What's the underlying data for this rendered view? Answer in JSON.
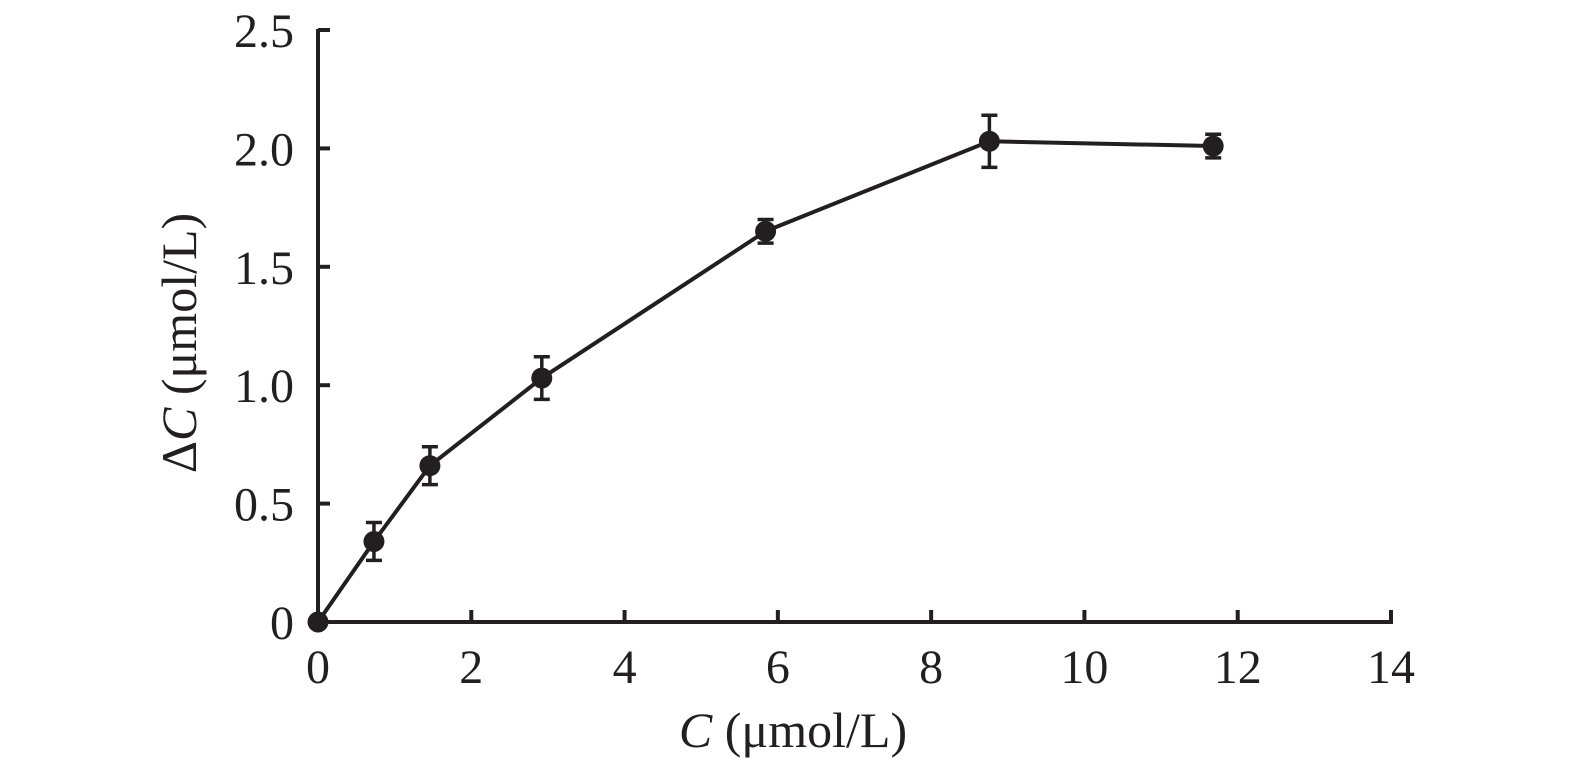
{
  "chart_data": {
    "type": "line",
    "xlabel": {
      "var": "C",
      "unit": " (μmol/L)"
    },
    "ylabel": {
      "prefix": "Δ",
      "var": "C",
      "unit": " (μmol/L)"
    },
    "xlim": [
      0,
      14
    ],
    "ylim": [
      0,
      2.5
    ],
    "x_ticks": [
      0,
      2,
      4,
      6,
      8,
      10,
      12,
      14
    ],
    "x_tick_labels": [
      "0",
      "2",
      "4",
      "6",
      "8",
      "10",
      "12",
      "14"
    ],
    "y_ticks": [
      0,
      0.5,
      1.0,
      1.5,
      2.0,
      2.5
    ],
    "y_tick_labels": [
      "0",
      "0.5",
      "1.0",
      "1.5",
      "2.0",
      "2.5"
    ],
    "grid": false,
    "legend": null,
    "series": [
      {
        "color": "#231f20",
        "marker": "filled-circle",
        "x": [
          0,
          0.73,
          1.46,
          2.92,
          5.84,
          8.76,
          11.68
        ],
        "y": [
          0,
          0.34,
          0.66,
          1.03,
          1.65,
          2.03,
          2.01
        ],
        "error": [
          0,
          0.08,
          0.08,
          0.09,
          0.05,
          0.11,
          0.05
        ]
      }
    ]
  }
}
